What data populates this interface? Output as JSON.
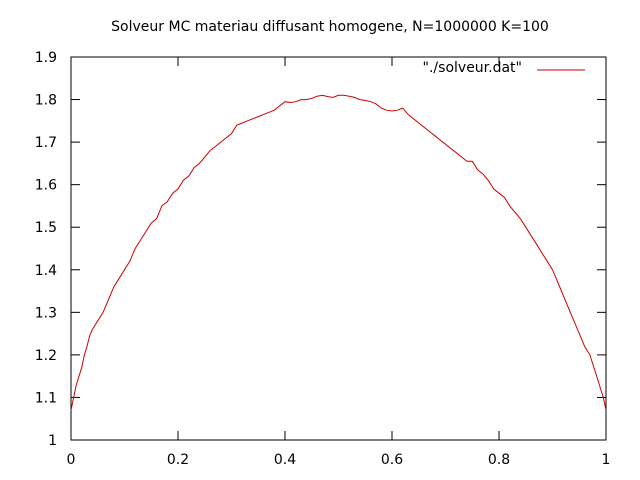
{
  "chart_data": {
    "type": "line",
    "title": "Solveur MC materiau diffusant homogene, N=1000000 K=100",
    "xlabel": "",
    "ylabel": "",
    "xlim": [
      0,
      1
    ],
    "ylim": [
      1,
      1.9
    ],
    "x_ticks": [
      "0",
      "0.2",
      "0.4",
      "0.6",
      "0.8",
      "1"
    ],
    "y_ticks": [
      "1",
      "1.1",
      "1.2",
      "1.3",
      "1.4",
      "1.5",
      "1.6",
      "1.7",
      "1.8",
      "1.9"
    ],
    "grid": false,
    "legend_position": "top-right",
    "series": [
      {
        "name": "\"./solveur.dat\"",
        "color": "#cc0000",
        "x": [
          0,
          0.005,
          0.01,
          0.015,
          0.02,
          0.025,
          0.03,
          0.035,
          0.04,
          0.045,
          0.05,
          0.06,
          0.07,
          0.08,
          0.09,
          0.1,
          0.11,
          0.12,
          0.13,
          0.14,
          0.15,
          0.16,
          0.17,
          0.18,
          0.19,
          0.2,
          0.21,
          0.22,
          0.23,
          0.24,
          0.25,
          0.26,
          0.27,
          0.28,
          0.29,
          0.3,
          0.31,
          0.32,
          0.33,
          0.34,
          0.35,
          0.36,
          0.37,
          0.38,
          0.39,
          0.4,
          0.41,
          0.42,
          0.43,
          0.44,
          0.45,
          0.46,
          0.47,
          0.48,
          0.49,
          0.5,
          0.51,
          0.52,
          0.53,
          0.54,
          0.55,
          0.56,
          0.57,
          0.58,
          0.59,
          0.6,
          0.61,
          0.62,
          0.63,
          0.64,
          0.65,
          0.66,
          0.67,
          0.68,
          0.69,
          0.7,
          0.71,
          0.72,
          0.73,
          0.74,
          0.75,
          0.76,
          0.77,
          0.78,
          0.79,
          0.8,
          0.81,
          0.82,
          0.83,
          0.84,
          0.85,
          0.86,
          0.87,
          0.88,
          0.89,
          0.9,
          0.91,
          0.92,
          0.93,
          0.94,
          0.95,
          0.96,
          0.97,
          0.98,
          0.985,
          0.99,
          0.995,
          1
        ],
        "y": [
          1.07,
          1.1,
          1.13,
          1.15,
          1.17,
          1.2,
          1.22,
          1.245,
          1.26,
          1.27,
          1.28,
          1.3,
          1.33,
          1.36,
          1.38,
          1.4,
          1.42,
          1.45,
          1.47,
          1.49,
          1.51,
          1.52,
          1.55,
          1.56,
          1.58,
          1.59,
          1.61,
          1.62,
          1.64,
          1.65,
          1.665,
          1.68,
          1.69,
          1.7,
          1.71,
          1.72,
          1.74,
          1.745,
          1.75,
          1.755,
          1.76,
          1.765,
          1.77,
          1.775,
          1.785,
          1.795,
          1.793,
          1.795,
          1.8,
          1.8,
          1.803,
          1.808,
          1.81,
          1.807,
          1.805,
          1.81,
          1.81,
          1.808,
          1.805,
          1.8,
          1.798,
          1.795,
          1.79,
          1.78,
          1.775,
          1.773,
          1.775,
          1.78,
          1.765,
          1.755,
          1.745,
          1.735,
          1.725,
          1.715,
          1.705,
          1.695,
          1.685,
          1.675,
          1.665,
          1.655,
          1.655,
          1.635,
          1.625,
          1.61,
          1.59,
          1.58,
          1.57,
          1.55,
          1.535,
          1.52,
          1.5,
          1.48,
          1.46,
          1.44,
          1.42,
          1.4,
          1.37,
          1.34,
          1.31,
          1.28,
          1.25,
          1.22,
          1.2,
          1.16,
          1.14,
          1.12,
          1.1,
          1.07
        ]
      }
    ]
  }
}
